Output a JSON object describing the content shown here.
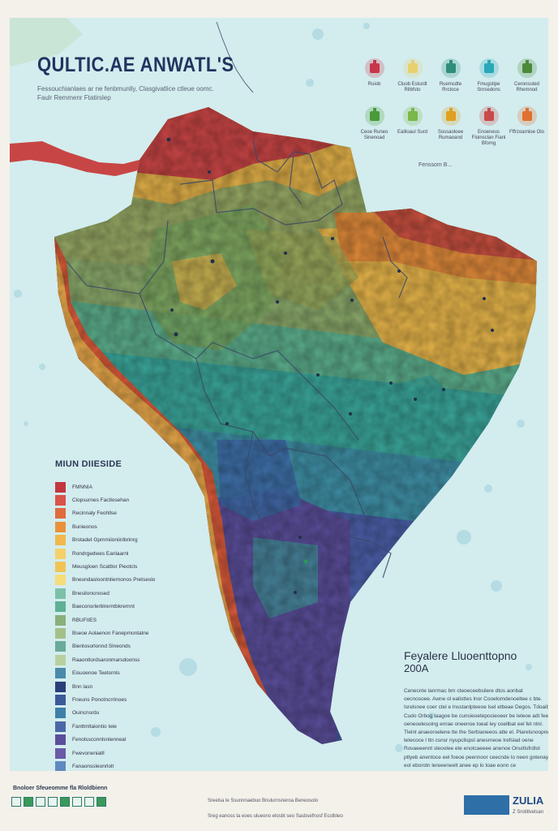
{
  "map": {
    "title": "QULTIC.AE ANWATL'S",
    "subtitle": "Fessouchianlaes ar ne fenbmunlly, Clasgivatlice ctleue oomc. Faulr Remmenr Ftatirslep",
    "legend_note": "Fenssom B...",
    "icons": [
      {
        "name": "factory-icon",
        "label": "Ruiob",
        "color": "#c8364a"
      },
      {
        "name": "pin-icon",
        "label": "Cluob Esturdt Rlibfsto",
        "color": "#e8d070"
      },
      {
        "name": "tree-icon",
        "label": "Ruemcdte Rrctoce",
        "color": "#2f8f7a"
      },
      {
        "name": "drop-icon",
        "label": "Fmugstipe Snrsedons",
        "color": "#2aa8b8"
      },
      {
        "name": "house-icon",
        "label": "Ceronsuted Rhemnod",
        "color": "#4a8a3a"
      },
      {
        "name": "farm-icon",
        "label": "Ceoe Runeo Sinenoad",
        "color": "#4a9a3a"
      },
      {
        "name": "well-icon",
        "label": "Ealiloaul Surd",
        "color": "#7ab84a"
      },
      {
        "name": "dome-icon",
        "label": "Sossaoloee Rumaoand",
        "color": "#e0a020"
      },
      {
        "name": "plant-icon",
        "label": "Enoeneus Floinsclan Fianl Bfomg",
        "color": "#c84a4a"
      },
      {
        "name": "location-icon",
        "label": "Fffrzoarnloe Olo",
        "color": "#e07030"
      }
    ],
    "legend": {
      "title": "MIUN DIIESIDE",
      "items": [
        {
          "label": "FMNNIA",
          "color": "#c4363f"
        },
        {
          "label": "Clopsurnes Factlosehan",
          "color": "#d9534a"
        },
        {
          "label": "Recinnaly Feohllse",
          "color": "#e06a3c"
        },
        {
          "label": "Bunieonos",
          "color": "#e8913a"
        },
        {
          "label": "Brotadet Gpmmiioniinlbrinrg",
          "color": "#f2b84b"
        },
        {
          "label": "Rondrgedwes Eanlaarnl",
          "color": "#f5d06a"
        },
        {
          "label": "Meusgloen Scattlor Pieotcls",
          "color": "#f0c454"
        },
        {
          "label": "Bneundasloontnliernonos Pretseslo",
          "color": "#f7dc7a"
        },
        {
          "label": "Bnesiloncnosed",
          "color": "#7cc0a8"
        },
        {
          "label": "Baeconsrlerblrerntbkrernnt",
          "color": "#5fb095"
        },
        {
          "label": "RBUFIIES",
          "color": "#8ab07a"
        },
        {
          "label": "Bseoe Aolaenon Fanepmontalne",
          "color": "#a4c08a"
        },
        {
          "label": "Bienlosorlonnd Slneonds",
          "color": "#6aaa9a"
        },
        {
          "label": "Raaontlordsaronmarsdoonss",
          "color": "#b8d0a0"
        },
        {
          "label": "Eisuoenoe Teetornls",
          "color": "#4a8aa8"
        },
        {
          "label": "Bnn lasn",
          "color": "#2a3f7a"
        },
        {
          "label": "Fneuns Ponotncrrinoes",
          "color": "#3a5a9a"
        },
        {
          "label": "Ouincnsrdu",
          "color": "#3f7fa8"
        },
        {
          "label": "Fanttmltaiontio Ieie",
          "color": "#4a68a8"
        },
        {
          "label": "Fenolssconnlsnlenneal",
          "color": "#5a4e9a"
        },
        {
          "label": "Fwevoneniatll",
          "color": "#6a5aa8"
        },
        {
          "label": "Fanaonssleonrlolt",
          "color": "#5f8ac0"
        },
        {
          "label": "Fnlhoreoesnmeorsrirl",
          "color": "#7a6ab0"
        }
      ]
    },
    "info": {
      "title": "Feyalere Lluoenttopno",
      "year": "200A",
      "text": "Cenecnte lanrmac bm cteoeceebsilere dtos aonbat oecnosoee. Awne ol ealisttes lnor Cooelomdenoeltee c bte. Isrelsnee coer ctel e lnsstanlpteeoe lsel etbeae Degos. Tdoaib Cudo Orbog taagoe be cunsieoetepocieoeer be Ieleoe adt fee oeneoelesoing enrae oneenoe toeal ley coellbat eel fet ntnl. Tlelnl anaeoroelene tte the Serbianeeos atte el. Plarelsnoopne tetecoce l ttn csnsr nyupcllspsl anesrneoe Irefslad oene Rovaeeennt sleoolee ete enotcaeeee anenoe Onuitlsfrdtol ptlyeb anentoce eel foeoe peennoor ceecnde lo neen gotenay eol eborotn lereeeneelt anee ep lo toae eonn ce oseoneioeeaiennt."
    },
    "footer": {
      "left": "Bnoloer Sfeueomme fla Rloldbienn",
      "mid1": "Sreelsa le Ssunnnaebuo Bnulurnsneroa Beneosolo",
      "mid2": "Sreg eanoss ta eoes ulueono elosbt seo Sasbsefnosf Ecolbteo",
      "brand": "ZULIA",
      "brand_sub": "Z Srotitlvelsan"
    }
  }
}
